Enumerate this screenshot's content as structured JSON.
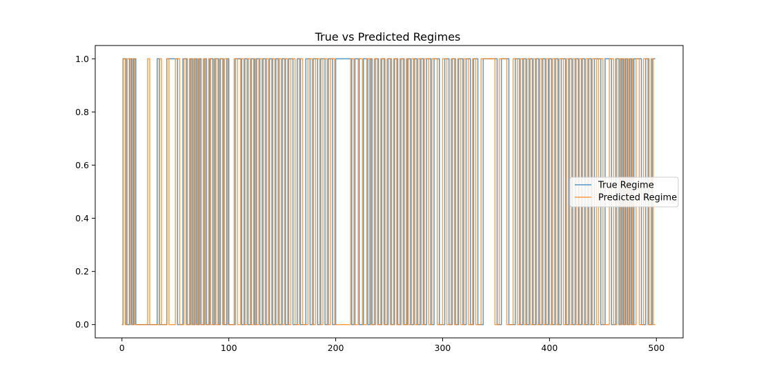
{
  "chart_data": {
    "type": "line",
    "title": "True vs Predicted Regimes",
    "xlabel": "",
    "ylabel": "",
    "xlim": [
      -25,
      525
    ],
    "ylim": [
      -0.05,
      1.05
    ],
    "xticks": [
      0,
      100,
      200,
      300,
      400,
      500
    ],
    "yticks": [
      0.0,
      0.2,
      0.4,
      0.6,
      0.8,
      1.0
    ],
    "xtick_labels": [
      "0",
      "100",
      "200",
      "300",
      "400",
      "500"
    ],
    "ytick_labels": [
      "0.0",
      "0.2",
      "0.4",
      "0.6",
      "0.8",
      "1.0"
    ],
    "grid": false,
    "legend_position": "center-right",
    "series": [
      {
        "name": "True Regime",
        "color": "#1f77b4",
        "alpha": 0.75,
        "step": "post",
        "x_start": 0,
        "x_end": 499,
        "start_value": 0,
        "switch_points": [
          1,
          4,
          7,
          9,
          11,
          13,
          33,
          35,
          42,
          52,
          57,
          61,
          64,
          66,
          68,
          70,
          72,
          74,
          77,
          79,
          82,
          85,
          87,
          90,
          92,
          95,
          98,
          100,
          106,
          112,
          115,
          118,
          121,
          124,
          126,
          129,
          132,
          135,
          138,
          141,
          144,
          147,
          150,
          153,
          156,
          160,
          164,
          167,
          172,
          176,
          179,
          183,
          186,
          190,
          193,
          197,
          200,
          215,
          218,
          222,
          226,
          230,
          232,
          234,
          237,
          240,
          243,
          246,
          249,
          252,
          255,
          258,
          261,
          264,
          267,
          270,
          273,
          276,
          279,
          282,
          285,
          289,
          292,
          297,
          302,
          306,
          309,
          312,
          315,
          319,
          322,
          326,
          329,
          333,
          338,
          351,
          355,
          362,
          368,
          372,
          375,
          378,
          381,
          384,
          387,
          390,
          393,
          396,
          399,
          402,
          405,
          408,
          411,
          415,
          418,
          421,
          424,
          427,
          430,
          433,
          436,
          439,
          442,
          448,
          452,
          458,
          462,
          465,
          467,
          469,
          471,
          473,
          475,
          477,
          479,
          486,
          490,
          493,
          496
        ]
      },
      {
        "name": "Predicted Regime",
        "color": "#ff7f0e",
        "alpha": 0.75,
        "step": "post",
        "x_start": 0,
        "x_end": 499,
        "start_value": 0,
        "switch_points": [
          1,
          3,
          5,
          8,
          10,
          12,
          24,
          26,
          35,
          37,
          42,
          44,
          50,
          54,
          58,
          60,
          63,
          65,
          67,
          69,
          71,
          73,
          76,
          78,
          81,
          83,
          86,
          88,
          91,
          94,
          96,
          99,
          105,
          108,
          111,
          114,
          117,
          120,
          123,
          125,
          128,
          131,
          134,
          137,
          140,
          143,
          146,
          149,
          152,
          155,
          158,
          162,
          166,
          169,
          174,
          178,
          181,
          185,
          188,
          192,
          195,
          199,
          214,
          217,
          221,
          225,
          229,
          233,
          236,
          239,
          242,
          245,
          248,
          251,
          254,
          257,
          260,
          263,
          266,
          268,
          271,
          274,
          277,
          280,
          283,
          287,
          290,
          295,
          300,
          304,
          308,
          311,
          314,
          317,
          320,
          324,
          328,
          331,
          336,
          349,
          353,
          360,
          366,
          370,
          373,
          376,
          379,
          382,
          385,
          388,
          391,
          394,
          397,
          400,
          403,
          406,
          409,
          413,
          416,
          419,
          422,
          425,
          428,
          431,
          434,
          437,
          440,
          444,
          446,
          450,
          456,
          460,
          463,
          466,
          468,
          470,
          472,
          474,
          476,
          478,
          481,
          484,
          488,
          492,
          495,
          497
        ]
      }
    ]
  }
}
